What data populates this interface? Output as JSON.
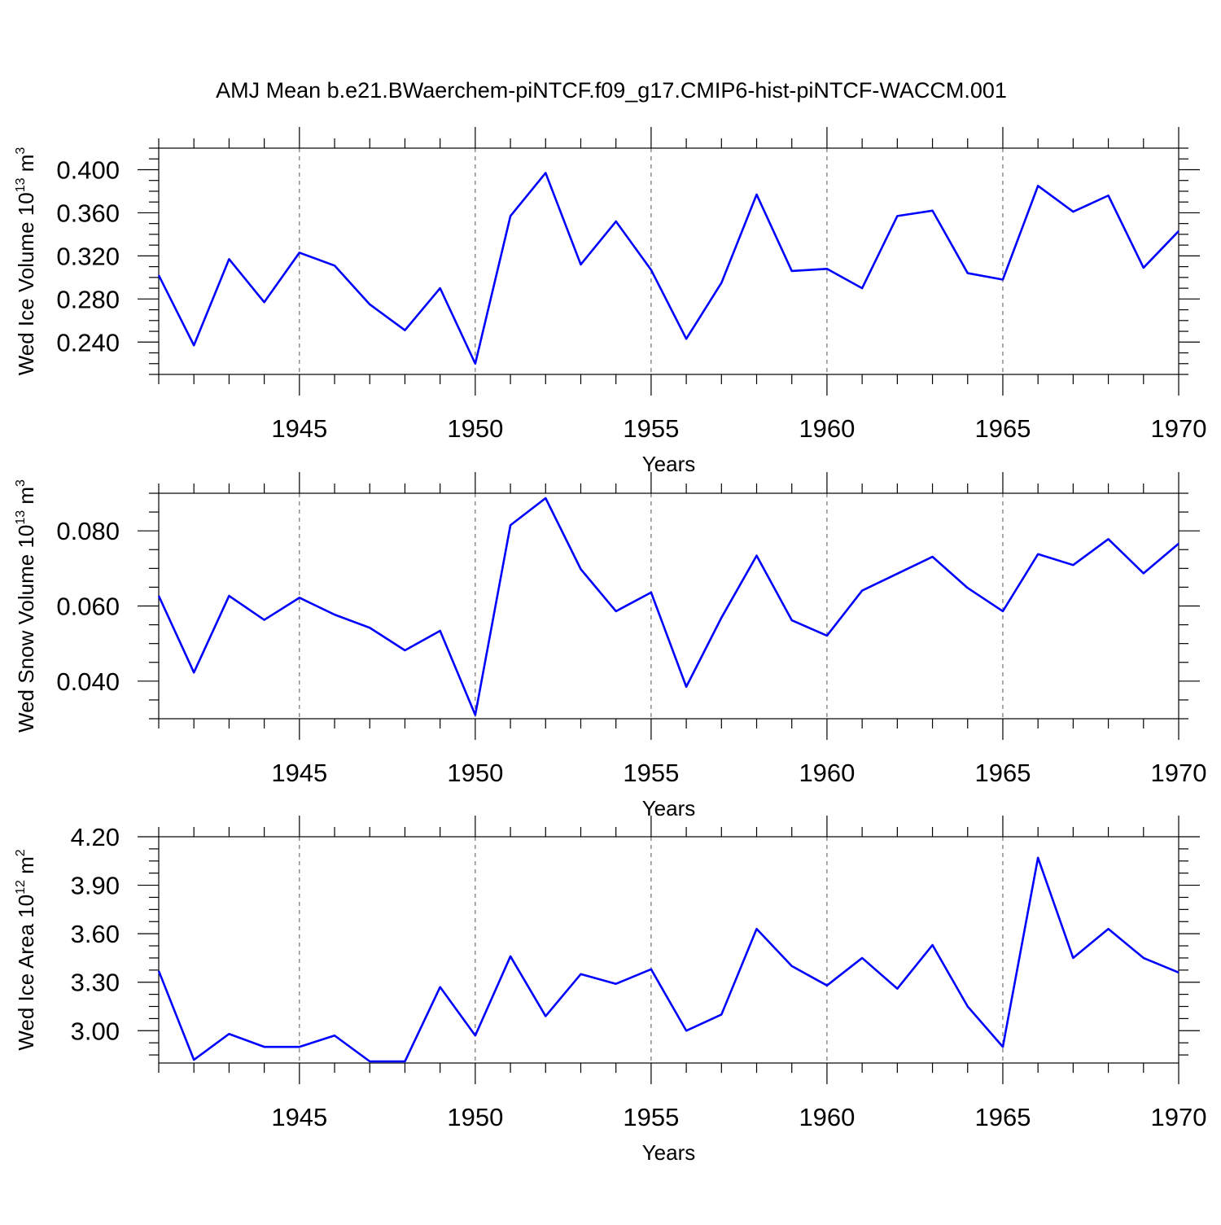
{
  "title": "AMJ Mean b.e21.BWaerchem-piNTCF.f09_g17.CMIP6-hist-piNTCF-WACCM.001",
  "colors": {
    "line": "#0000ff",
    "axis": "#000000",
    "grid": "#555555"
  },
  "chart_data": [
    {
      "type": "line",
      "id": "ice-volume",
      "ylabel": "Wed Ice Volume",
      "ylabel_unit_base": "10",
      "ylabel_unit_exp": "13",
      "ylabel_unit_tail": "m",
      "ylabel_unit_tail_exp": "3",
      "xlabel": "Years",
      "xlim": [
        1941,
        1970
      ],
      "ylim": [
        0.21,
        0.42
      ],
      "yticks": [
        0.24,
        0.28,
        0.32,
        0.36,
        0.4
      ],
      "ytick_labels": [
        "0.240",
        "0.280",
        "0.320",
        "0.360",
        "0.400"
      ],
      "yminor_step": 0.01,
      "xticks": [
        1945,
        1950,
        1955,
        1960,
        1965,
        1970
      ],
      "xtick_labels": [
        "1945",
        "1950",
        "1955",
        "1960",
        "1965",
        "1970"
      ],
      "grid_x": true,
      "x": [
        1941,
        1942,
        1943,
        1944,
        1945,
        1946,
        1947,
        1948,
        1949,
        1950,
        1951,
        1952,
        1953,
        1954,
        1955,
        1956,
        1957,
        1958,
        1959,
        1960,
        1961,
        1962,
        1963,
        1964,
        1965,
        1966,
        1967,
        1968,
        1969,
        1970
      ],
      "series": [
        {
          "name": "Wed Ice Volume",
          "values": [
            0.302,
            0.237,
            0.317,
            0.277,
            0.323,
            0.311,
            0.275,
            0.251,
            0.29,
            0.22,
            0.357,
            0.397,
            0.312,
            0.352,
            0.307,
            0.243,
            0.295,
            0.377,
            0.306,
            0.308,
            0.29,
            0.357,
            0.362,
            0.304,
            0.298,
            0.385,
            0.361,
            0.376,
            0.309,
            0.343
          ]
        }
      ]
    },
    {
      "type": "line",
      "id": "snow-volume",
      "ylabel": "Wed Snow Volume",
      "ylabel_unit_base": "10",
      "ylabel_unit_exp": "13",
      "ylabel_unit_tail": "m",
      "ylabel_unit_tail_exp": "3",
      "xlabel": "Years",
      "xlim": [
        1941,
        1970
      ],
      "ylim": [
        0.03,
        0.09
      ],
      "yticks": [
        0.04,
        0.06,
        0.08
      ],
      "ytick_labels": [
        "0.040",
        "0.060",
        "0.080"
      ],
      "yminor_step": 0.005,
      "xticks": [
        1945,
        1950,
        1955,
        1960,
        1965,
        1970
      ],
      "xtick_labels": [
        "1945",
        "1950",
        "1955",
        "1960",
        "1965",
        "1970"
      ],
      "grid_x": true,
      "x": [
        1941,
        1942,
        1943,
        1944,
        1945,
        1946,
        1947,
        1948,
        1949,
        1950,
        1951,
        1952,
        1953,
        1954,
        1955,
        1956,
        1957,
        1958,
        1959,
        1960,
        1961,
        1962,
        1963,
        1964,
        1965,
        1966,
        1967,
        1968,
        1969,
        1970
      ],
      "series": [
        {
          "name": "Wed Snow Volume",
          "values": [
            0.0627,
            0.0423,
            0.0627,
            0.0563,
            0.0622,
            0.0577,
            0.0542,
            0.0482,
            0.0534,
            0.031,
            0.0815,
            0.0887,
            0.0698,
            0.0586,
            0.0636,
            0.0385,
            0.0569,
            0.0734,
            0.0562,
            0.0521,
            0.0641,
            0.0686,
            0.0731,
            0.0648,
            0.0586,
            0.0738,
            0.0709,
            0.0778,
            0.0687,
            0.0766
          ]
        }
      ]
    },
    {
      "type": "line",
      "id": "ice-area",
      "ylabel": "Wed Ice Area",
      "ylabel_unit_base": "10",
      "ylabel_unit_exp": "12",
      "ylabel_unit_tail": "m",
      "ylabel_unit_tail_exp": "2",
      "xlabel": "Years",
      "xlim": [
        1941,
        1970
      ],
      "ylim": [
        2.8,
        4.2
      ],
      "yticks": [
        3.0,
        3.3,
        3.6,
        3.9,
        4.2
      ],
      "ytick_labels": [
        "3.00",
        "3.30",
        "3.60",
        "3.90",
        "4.20"
      ],
      "yminor_step": 0.075,
      "xticks": [
        1945,
        1950,
        1955,
        1960,
        1965,
        1970
      ],
      "xtick_labels": [
        "1945",
        "1950",
        "1955",
        "1960",
        "1965",
        "1970"
      ],
      "grid_x": true,
      "x": [
        1941,
        1942,
        1943,
        1944,
        1945,
        1946,
        1947,
        1948,
        1949,
        1950,
        1951,
        1952,
        1953,
        1954,
        1955,
        1956,
        1957,
        1958,
        1959,
        1960,
        1961,
        1962,
        1963,
        1964,
        1965,
        1966,
        1967,
        1968,
        1969,
        1970
      ],
      "series": [
        {
          "name": "Wed Ice Area",
          "values": [
            3.37,
            2.82,
            2.98,
            2.9,
            2.9,
            2.97,
            2.81,
            2.81,
            3.27,
            2.97,
            3.46,
            3.09,
            3.35,
            3.29,
            3.38,
            3.0,
            3.1,
            3.63,
            3.4,
            3.28,
            3.45,
            3.26,
            3.53,
            3.15,
            2.9,
            4.07,
            3.45,
            3.63,
            3.45,
            3.36
          ]
        }
      ]
    }
  ]
}
